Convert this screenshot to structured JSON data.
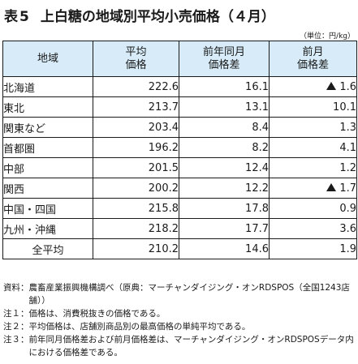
{
  "title": {
    "prefix": "表",
    "number": "5",
    "text": "上白糖の地域別平均小売価格（４月）"
  },
  "unit_note": "（単位：円/kg）",
  "table": {
    "headers": {
      "region": "地域",
      "avg_line1": "平均",
      "avg_line2": "価格",
      "yoy_line1": "前年同月",
      "yoy_line2": "価格差",
      "mom_line1": "前月",
      "mom_line2": "価格差"
    },
    "rows": [
      {
        "region": "北海道",
        "avg": "222.6",
        "yoy": "16.1",
        "mom": "1.6",
        "mom_negative": true
      },
      {
        "region": "東北",
        "avg": "213.7",
        "yoy": "13.1",
        "mom": "10.1",
        "mom_negative": false
      },
      {
        "region": "関東など",
        "avg": "203.4",
        "yoy": "8.4",
        "mom": "1.3",
        "mom_negative": false
      },
      {
        "region": "首都圏",
        "avg": "196.2",
        "yoy": "8.2",
        "mom": "4.1",
        "mom_negative": false
      },
      {
        "region": "中部",
        "avg": "201.5",
        "yoy": "12.4",
        "mom": "1.2",
        "mom_negative": false
      },
      {
        "region": "関西",
        "avg": "200.2",
        "yoy": "12.2",
        "mom": "1.7",
        "mom_negative": true
      },
      {
        "region": "中国・四国",
        "avg": "215.8",
        "yoy": "17.8",
        "mom": "0.9",
        "mom_negative": false
      },
      {
        "region": "九州・沖縄",
        "avg": "218.2",
        "yoy": "17.7",
        "mom": "3.6",
        "mom_negative": false
      },
      {
        "region": "全平均",
        "avg": "210.2",
        "yoy": "14.6",
        "mom": "1.9",
        "mom_negative": false,
        "centered": true
      }
    ]
  },
  "notes": [
    {
      "label": "資料：",
      "text": "農畜産業振興機構調べ（原典：マーチャンダイジング・オンRDSPOS（全国1243店舗））"
    },
    {
      "label": "注１：",
      "text": "価格は、消費税抜きの価格である。"
    },
    {
      "label": "注２：",
      "text": "平均価格は、店舗別商品別の最高価格の単純平均である。"
    },
    {
      "label": "注３：",
      "text": "前年同月価格差および前月価格差は、マーチャンダイジング・オンRDSPOSデータ内における価格差である。"
    }
  ]
}
